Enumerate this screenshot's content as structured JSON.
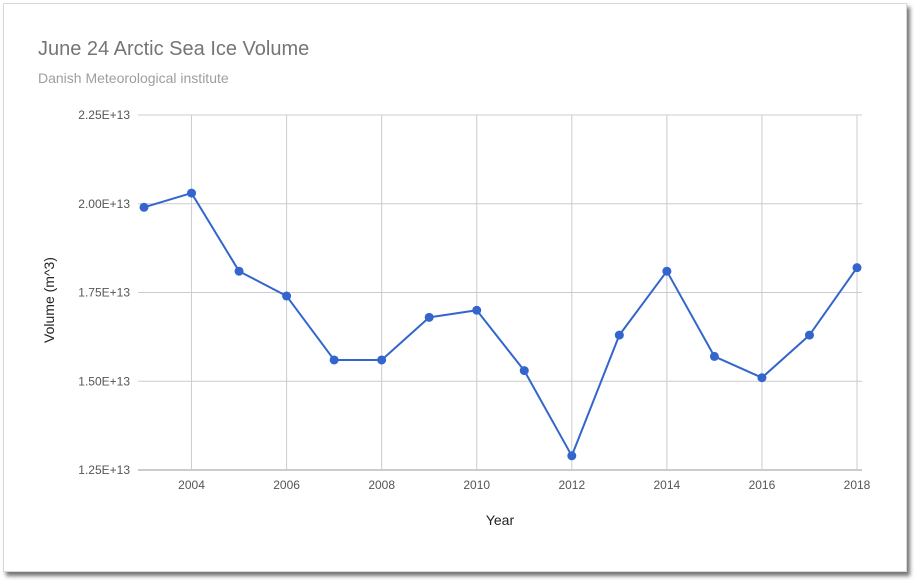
{
  "chart_data": {
    "type": "line",
    "title": "June 24 Arctic Sea Ice Volume",
    "subtitle": "Danish Meteorological institute",
    "xlabel": "Year",
    "ylabel": "Volume (m^3)",
    "x": [
      2003,
      2004,
      2005,
      2006,
      2007,
      2008,
      2009,
      2010,
      2011,
      2012,
      2013,
      2014,
      2015,
      2016,
      2017,
      2018
    ],
    "values": [
      19900000000000.0,
      20300000000000.0,
      18100000000000.0,
      17400000000000.0,
      15600000000000.0,
      15600000000000.0,
      16800000000000.0,
      17000000000000.0,
      15300000000000.0,
      12900000000000.0,
      16300000000000.0,
      18100000000000.0,
      15700000000000.0,
      15100000000000.0,
      16300000000000.0,
      18200000000000.0
    ],
    "xlim": [
      2003,
      2018
    ],
    "ylim": [
      12500000000000.0,
      22500000000000.0
    ],
    "x_ticks": [
      "2004",
      "2006",
      "2008",
      "2010",
      "2012",
      "2014",
      "2016",
      "2018"
    ],
    "y_ticks": [
      "2.25E+13",
      "2.00E+13",
      "1.75E+13",
      "1.50E+13",
      "1.25E+13"
    ],
    "grid": true,
    "line_color": "#3366cc"
  }
}
